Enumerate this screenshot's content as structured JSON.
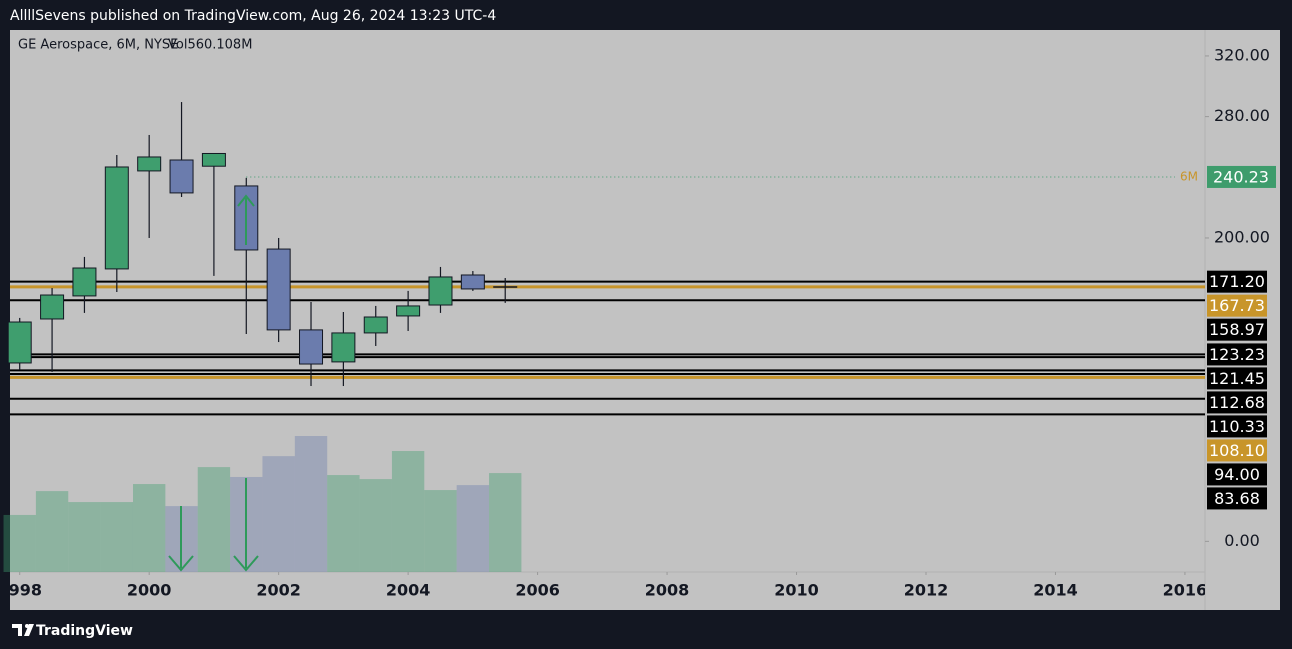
{
  "header": {
    "text": "AllllSevens published on TradingView.com, Aug 26, 2024 13:23 UTC-4"
  },
  "footer": {
    "brand": "TradingView"
  },
  "chart_data": {
    "type": "candlestick",
    "title": "GE Aerospace, 6M, NYSE",
    "volume_label": "Vol560.108M",
    "interval_label": "6M",
    "x": [
      1998,
      1998.5,
      1999,
      1999.5,
      2000,
      2000.5,
      2001,
      2001.5,
      2002,
      2002.5,
      2003,
      2003.5,
      2004,
      2004.5,
      2005,
      2005.5
    ],
    "open": [
      117.6,
      146.6,
      161.8,
      179.6,
      244.2,
      251.4,
      247.3,
      234.3,
      192.7,
      139.4,
      118.3,
      137.4,
      148.6,
      155.8,
      175.6,
      167.7
    ],
    "high": [
      147.3,
      167.0,
      187.5,
      254.7,
      267.9,
      289.6,
      256.0,
      239.6,
      200.0,
      157.8,
      151.2,
      155.2,
      165.1,
      180.9,
      178.2,
      173.6
    ],
    "low": [
      113.0,
      111.7,
      150.6,
      164.4,
      200.0,
      227.0,
      175.0,
      136.7,
      131.4,
      102.4,
      102.4,
      128.8,
      138.7,
      150.6,
      165.1,
      157.2
    ],
    "close": [
      144.6,
      162.4,
      180.2,
      246.8,
      253.4,
      229.7,
      255.7,
      192.1,
      139.4,
      116.9,
      137.4,
      147.9,
      155.2,
      174.3,
      166.4,
      167.7
    ],
    "volume": [
      323,
      458,
      396,
      396,
      498,
      373,
      594,
      538,
      656,
      770,
      549,
      526,
      685,
      464,
      492,
      560.108
    ],
    "up_color": "#3f9e6e",
    "down_color": "#6b7cad",
    "xlim": [
      1997.85,
      2016.31
    ],
    "xticks": [
      {
        "value": 1998,
        "label": "1998"
      },
      2000,
      2002,
      2004,
      2006,
      2008,
      2010,
      2012,
      2014,
      2016
    ],
    "ylim": [
      -20.2,
      337.1
    ],
    "yticks": [
      {
        "value": 0,
        "label": "0.00"
      },
      {
        "value": 200,
        "label": "200.00"
      },
      {
        "value": 280,
        "label": "280.00"
      },
      {
        "value": 320,
        "label": "320.00"
      }
    ],
    "last_price": {
      "value": 240.23,
      "color": "#3e9c6c"
    },
    "levels": [
      {
        "value": 171.2,
        "label": "171.20",
        "color": "#000000"
      },
      {
        "value": 167.73,
        "label": "167.73",
        "color": "#c8952a"
      },
      {
        "value": 158.97,
        "label": "158.97",
        "color": "#000000"
      },
      {
        "value": 123.23,
        "label": "123.23",
        "color": "#000000"
      },
      {
        "value": 121.45,
        "label": "121.45",
        "color": "#000000"
      },
      {
        "value": 112.68,
        "label": "112.68",
        "color": "#000000"
      },
      {
        "value": 110.33,
        "label": "110.33",
        "color": "#000000"
      },
      {
        "value": 108.1,
        "label": "108.10",
        "color": "#c8952a"
      },
      {
        "value": 94,
        "label": "94.00",
        "color": "#000000"
      },
      {
        "value": 83.68,
        "label": "83.68",
        "color": "#000000"
      }
    ]
  }
}
